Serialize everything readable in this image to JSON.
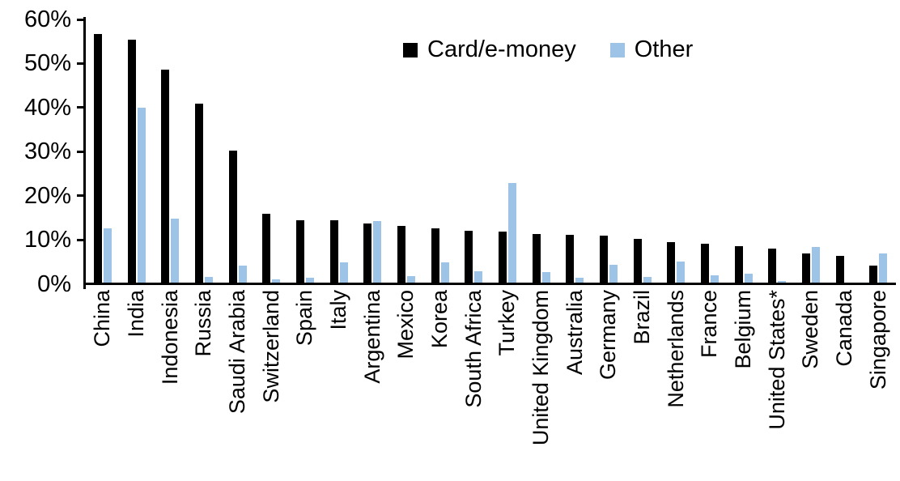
{
  "chart_data": {
    "type": "bar",
    "title": "",
    "categories": [
      "China",
      "India",
      "Indonesia",
      "Russia",
      "Saudi Arabia",
      "Switzerland",
      "Spain",
      "Italy",
      "Argentina",
      "Mexico",
      "Korea",
      "South Africa",
      "Turkey",
      "United Kingdom",
      "Australia",
      "Germany",
      "Brazil",
      "Netherlands",
      "France",
      "Belgium",
      "United States*",
      "Sweden",
      "Canada",
      "Singapore"
    ],
    "series": [
      {
        "name": "Card/e-money",
        "color": "#000000",
        "values": [
          56.4,
          55.2,
          48.4,
          40.6,
          29.9,
          15.7,
          14.1,
          14.1,
          13.4,
          12.9,
          12.3,
          11.7,
          11.6,
          11.1,
          10.8,
          10.6,
          10.0,
          9.2,
          8.8,
          8.2,
          7.8,
          6.6,
          6.0,
          3.9
        ]
      },
      {
        "name": "Other",
        "color": "#9DC3E6",
        "values": [
          12.3,
          39.7,
          14.5,
          1.2,
          3.8,
          0.8,
          1.1,
          4.6,
          13.9,
          1.4,
          4.6,
          2.5,
          22.6,
          2.4,
          1.1,
          4.0,
          1.2,
          4.8,
          1.6,
          2.1,
          0.3,
          8.1,
          0.0,
          6.7
        ]
      }
    ],
    "ylabel": "",
    "xlabel": "",
    "ylim": [
      0,
      60
    ],
    "ytick_values": [
      0,
      10,
      20,
      30,
      40,
      50,
      60
    ],
    "ytick_labels": [
      "0%",
      "10%",
      "20%",
      "30%",
      "40%",
      "50%",
      "60%"
    ],
    "grid": false,
    "legend_position": "top-center",
    "axis_color": "#000000"
  }
}
